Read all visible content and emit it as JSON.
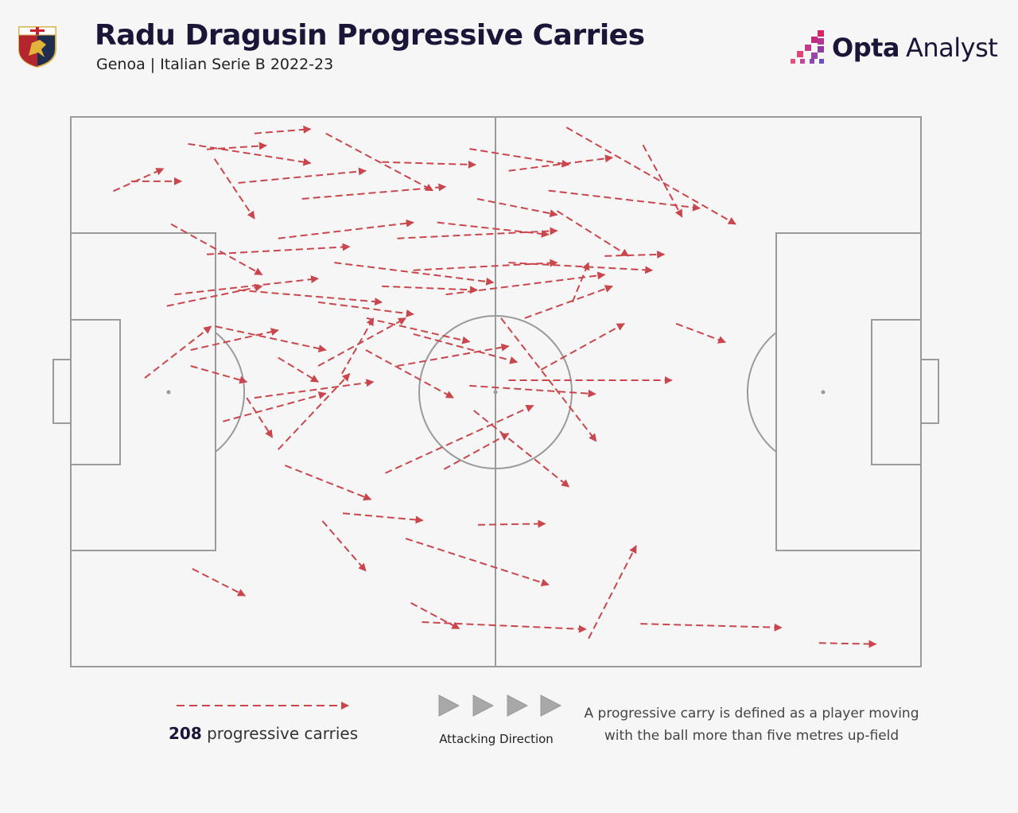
{
  "header": {
    "title": "Radu Dragusin Progressive Carries",
    "subtitle": "Genoa | Italian Serie B 2022-23",
    "brand_opta": "Opta",
    "brand_analyst": "Analyst"
  },
  "legend": {
    "count": "208",
    "count_label": "progressive carries",
    "attacking_direction": "Attacking Direction",
    "description_line1": "A progressive carry is defined as a player moving",
    "description_line2": "with the ball more than five metres up-field"
  },
  "colors": {
    "arrow": "#c9474c",
    "pitch_lines": "#9a9a9a",
    "direction_triangles": "#a8a8a8",
    "title": "#1b1538"
  },
  "chart_data": {
    "type": "pitch-arrows",
    "title": "Radu Dragusin Progressive Carries",
    "total_carries": 208,
    "coordinate_system": "x 0-100 along pitch length (attacking left to right), y 0-100 across width from top",
    "carries": [
      [
        5.0,
        13.5,
        10.9,
        9.4
      ],
      [
        7.1,
        11.7,
        13.0,
        11.7
      ],
      [
        21.6,
        3.0,
        28.2,
        2.2
      ],
      [
        58.3,
        1.9,
        78.2,
        19.5
      ],
      [
        67.3,
        5.1,
        71.9,
        18.2
      ],
      [
        71.2,
        37.6,
        77.0,
        41.0
      ],
      [
        51.5,
        47.9,
        70.7,
        47.9
      ],
      [
        25.2,
        63.4,
        35.3,
        69.6
      ],
      [
        37.0,
        64.8,
        54.4,
        52.5
      ],
      [
        47.4,
        53.4,
        58.6,
        67.3
      ],
      [
        32.0,
        72.1,
        41.4,
        73.4
      ],
      [
        47.9,
        74.2,
        55.8,
        74.0
      ],
      [
        29.6,
        73.5,
        34.7,
        82.6
      ],
      [
        39.4,
        76.7,
        56.2,
        85.1
      ],
      [
        14.3,
        82.2,
        20.5,
        87.1
      ],
      [
        40.0,
        88.4,
        45.7,
        93.1
      ],
      [
        41.3,
        91.9,
        60.6,
        93.2
      ],
      [
        60.9,
        94.9,
        66.5,
        78.0
      ],
      [
        67.0,
        92.2,
        83.6,
        92.9
      ],
      [
        88.0,
        95.7,
        94.7,
        95.9
      ],
      [
        8.7,
        47.5,
        16.5,
        38.1
      ],
      [
        14.1,
        45.3,
        20.7,
        48.2
      ],
      [
        17.9,
        55.4,
        30.0,
        50.3
      ],
      [
        24.4,
        60.5,
        32.8,
        46.7
      ],
      [
        20.7,
        51.1,
        23.7,
        58.3
      ],
      [
        43.9,
        64.1,
        51.5,
        57.6
      ],
      [
        50.6,
        36.6,
        61.8,
        59.0
      ],
      [
        55.3,
        46.0,
        65.1,
        37.6
      ],
      [
        46.9,
        48.9,
        61.7,
        50.4
      ],
      [
        62.8,
        25.3,
        69.8,
        25.0
      ],
      [
        56.2,
        13.4,
        74.0,
        16.6
      ],
      [
        51.5,
        9.8,
        63.7,
        7.4
      ],
      [
        46.9,
        5.8,
        58.6,
        8.7
      ],
      [
        36.6,
        8.2,
        47.6,
        8.7
      ],
      [
        30.0,
        3.0,
        42.6,
        13.4
      ],
      [
        13.8,
        4.9,
        28.2,
        8.4
      ],
      [
        16.0,
        5.9,
        23.0,
        5.2
      ],
      [
        11.8,
        19.5,
        22.5,
        28.7
      ],
      [
        11.3,
        34.4,
        22.5,
        30.8
      ],
      [
        14.1,
        42.4,
        24.4,
        38.8
      ],
      [
        17.0,
        38.1,
        30.0,
        42.4
      ],
      [
        21.6,
        51.1,
        35.6,
        48.2
      ],
      [
        19.7,
        31.5,
        36.6,
        33.7
      ],
      [
        24.4,
        22.1,
        40.3,
        19.2
      ],
      [
        27.2,
        14.9,
        44.1,
        12.7
      ],
      [
        31.0,
        26.5,
        49.7,
        30.1
      ],
      [
        34.8,
        36.6,
        46.9,
        40.9
      ],
      [
        38.4,
        22.1,
        57.2,
        20.7
      ],
      [
        40.3,
        27.9,
        57.2,
        26.5
      ],
      [
        44.1,
        32.3,
        62.8,
        28.7
      ],
      [
        47.8,
        14.9,
        57.2,
        17.8
      ],
      [
        34.7,
        42.4,
        45.0,
        51.1
      ],
      [
        29.1,
        45.3,
        39.4,
        36.6
      ],
      [
        40.3,
        39.5,
        52.5,
        44.6
      ],
      [
        24.4,
        43.8,
        29.1,
        48.2
      ],
      [
        31.9,
        46.7,
        35.6,
        36.6
      ],
      [
        59.0,
        33.7,
        60.9,
        26.5
      ],
      [
        43.1,
        19.2,
        56.2,
        21.4
      ],
      [
        19.7,
        12.0,
        34.7,
        9.8
      ],
      [
        16.9,
        7.6,
        21.6,
        18.5
      ],
      [
        51.5,
        26.5,
        68.4,
        27.9
      ],
      [
        57.2,
        17.1,
        65.6,
        25.3
      ],
      [
        53.4,
        36.6,
        63.7,
        30.8
      ],
      [
        38.4,
        45.3,
        51.5,
        41.7
      ],
      [
        29.1,
        33.7,
        40.3,
        35.9
      ],
      [
        36.6,
        30.8,
        47.8,
        31.5
      ],
      [
        12.2,
        32.3,
        29.1,
        29.4
      ],
      [
        16.0,
        25.0,
        32.8,
        23.6
      ]
    ]
  }
}
